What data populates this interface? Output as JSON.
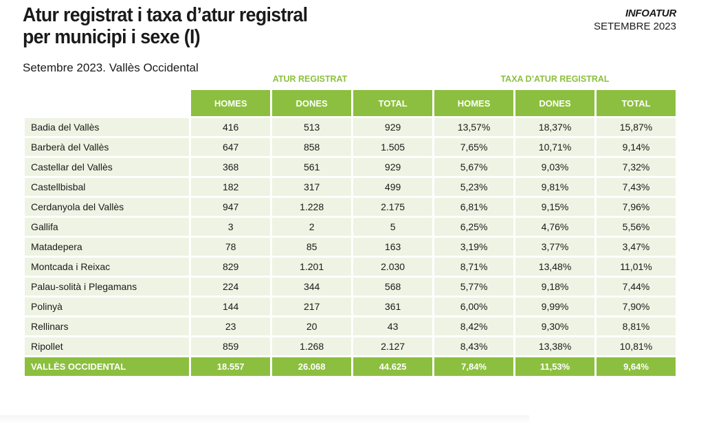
{
  "header": {
    "title_line1": "Atur registrat i taxa d’atur registral",
    "title_line2": "per municipi i sexe (I)",
    "subtitle": "Setembre 2023. Vallès Occidental",
    "brand": "INFOATUR",
    "brand_date": "SETEMBRE 2023"
  },
  "table": {
    "group_labels": [
      "ATUR REGISTRAT",
      "TAXA D’ATUR REGISTRAL"
    ],
    "columns": [
      "HOMES",
      "DONES",
      "TOTAL",
      "HOMES",
      "DONES",
      "TOTAL"
    ],
    "rows": [
      [
        "Badia del Vallès",
        "416",
        "513",
        "929",
        "13,57%",
        "18,37%",
        "15,87%"
      ],
      [
        "Barberà del Vallès",
        "647",
        "858",
        "1.505",
        "7,65%",
        "10,71%",
        "9,14%"
      ],
      [
        "Castellar del Vallès",
        "368",
        "561",
        "929",
        "5,67%",
        "9,03%",
        "7,32%"
      ],
      [
        "Castellbisbal",
        "182",
        "317",
        "499",
        "5,23%",
        "9,81%",
        "7,43%"
      ],
      [
        "Cerdanyola del Vallès",
        "947",
        "1.228",
        "2.175",
        "6,81%",
        "9,15%",
        "7,96%"
      ],
      [
        "Gallifa",
        "3",
        "2",
        "5",
        "6,25%",
        "4,76%",
        "5,56%"
      ],
      [
        "Matadepera",
        "78",
        "85",
        "163",
        "3,19%",
        "3,77%",
        "3,47%"
      ],
      [
        "Montcada i Reixac",
        "829",
        "1.201",
        "2.030",
        "8,71%",
        "13,48%",
        "11,01%"
      ],
      [
        "Palau-solità i Plegamans",
        "224",
        "344",
        "568",
        "5,77%",
        "9,18%",
        "7,44%"
      ],
      [
        "Polinyà",
        "144",
        "217",
        "361",
        "6,00%",
        "9,99%",
        "7,90%"
      ],
      [
        "Rellinars",
        "23",
        "20",
        "43",
        "8,42%",
        "9,30%",
        "8,81%"
      ],
      [
        "Ripollet",
        "859",
        "1.268",
        "2.127",
        "8,43%",
        "13,38%",
        "10,81%"
      ]
    ],
    "total": [
      "VALLÈS OCCIDENTAL",
      "18.557",
      "26.068",
      "44.625",
      "7,84%",
      "11,53%",
      "9,64%"
    ]
  },
  "colors": {
    "accent": "#8cbf3f",
    "row_bg": "#eef3e3"
  }
}
